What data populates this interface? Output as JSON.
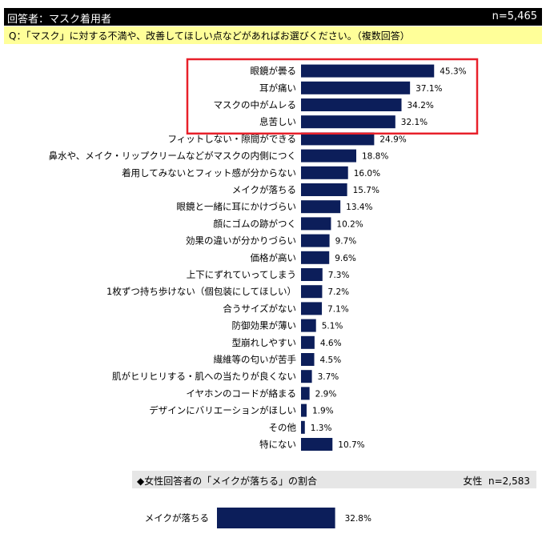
{
  "header": {
    "title": "回答者：マスク着用者",
    "n": "n=5,465"
  },
  "question": "Q：「マスク」に対する不満や、改善してほしい点などがあればお選びください。（複数回答）",
  "colors": {
    "bar": "#0c1e5a",
    "highlight": "#e8202a",
    "header_bg": "#000000",
    "question_bg": "#ffff99",
    "subheader_bg": "#e6e6e6"
  },
  "chart_data": [
    {
      "type": "bar",
      "orientation": "horizontal",
      "categories": [
        "眼鏡が曇る",
        "耳が痛い",
        "マスクの中がムレる",
        "息苦しい",
        "フィットしない・隙間ができる",
        "鼻水や、メイク・リップクリームなどがマスクの内側につく",
        "着用してみないとフィット感が分からない",
        "メイクが落ちる",
        "眼鏡と一緒に耳にかけづらい",
        "顔にゴムの跡がつく",
        "効果の違いが分かりづらい",
        "価格が高い",
        "上下にずれていってしまう",
        "1枚ずつ持ち歩けない（個包装にしてほしい）",
        "合うサイズがない",
        "防御効果が薄い",
        "型崩れしやすい",
        "繊維等の匂いが苦手",
        "肌がヒリヒリする・肌への当たりが良くない",
        "イヤホンのコードが絡まる",
        "デザインにバリエーションがほしい",
        "その他",
        "特にない"
      ],
      "values": [
        45.3,
        37.1,
        34.2,
        32.1,
        24.9,
        18.8,
        16.0,
        15.7,
        13.4,
        10.2,
        9.7,
        9.6,
        7.3,
        7.2,
        7.1,
        5.1,
        4.6,
        4.5,
        3.7,
        2.9,
        1.9,
        1.3,
        10.7
      ],
      "value_labels": [
        "45.3%",
        "37.1%",
        "34.2%",
        "32.1%",
        "24.9%",
        "18.8%",
        "16.0%",
        "15.7%",
        "13.4%",
        "10.2%",
        "9.7%",
        "9.6%",
        "7.3%",
        "7.2%",
        "7.1%",
        "5.1%",
        "4.6%",
        "4.5%",
        "3.7%",
        "2.9%",
        "1.9%",
        "1.3%",
        "10.7%"
      ],
      "highlighted_top": 4,
      "xlim": [
        0,
        100
      ]
    },
    {
      "type": "bar",
      "orientation": "horizontal",
      "title": "◆女性回答者の「メイクが落ちる」の割合",
      "group": "女性",
      "n": "n=2,583",
      "categories": [
        "メイクが落ちる"
      ],
      "values": [
        32.8
      ],
      "value_labels": [
        "32.8%"
      ],
      "xlim": [
        0,
        100
      ]
    }
  ]
}
